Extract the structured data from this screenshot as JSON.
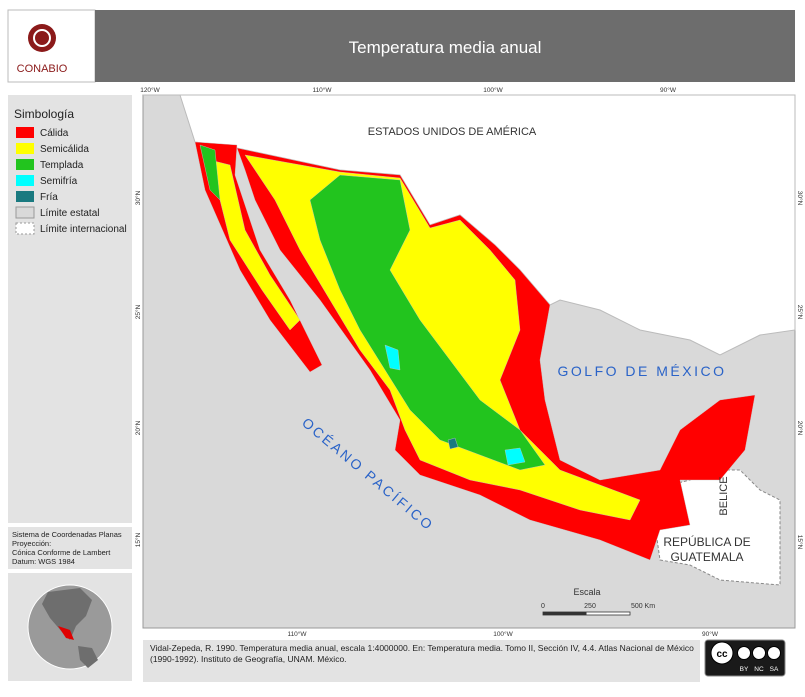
{
  "header": {
    "title": "Temperatura media anual",
    "logo_text": "CONABIO"
  },
  "legend": {
    "title": "Simbología",
    "items": [
      {
        "label": "Cálida",
        "color": "#ff0000"
      },
      {
        "label": "Semicálida",
        "color": "#ffff00"
      },
      {
        "label": "Templada",
        "color": "#22c41e"
      },
      {
        "label": "Semifría",
        "color": "#00ffff"
      },
      {
        "label": "Fría",
        "color": "#1a7a80"
      },
      {
        "label": "Límite estatal",
        "color": "#d9d9d9"
      },
      {
        "label": "Límite internacional",
        "color": "#ffffff"
      }
    ]
  },
  "projection": {
    "lines": [
      "Sistema de Coordenadas Planas",
      "Proyección:",
      "Cónica Conforme de Lambert",
      "Datum: WGS 1984"
    ]
  },
  "map": {
    "top_ticks": [
      "120°W",
      "110°W",
      "100°W",
      "90°W"
    ],
    "bottom_ticks": [
      "110°W",
      "100°W",
      "90°W"
    ],
    "left_ticks": [
      "30°N",
      "25°N",
      "20°N",
      "15°N"
    ],
    "right_ticks": [
      "30°N",
      "25°N",
      "20°N",
      "15°N"
    ],
    "labels": {
      "usa": "ESTADOS UNIDOS DE AMÉRICA",
      "gulf": "GOLFO DE MÉXICO",
      "pacific": "OCÉANO PACÍFICO",
      "belize": "BELICE",
      "guatemala": [
        "REPÚBLICA DE",
        "GUATEMALA"
      ]
    },
    "scale": {
      "title": "Escala",
      "ticks": [
        "0",
        "250",
        "500 Km"
      ]
    }
  },
  "citation": "Vidal-Zepeda, R. 1990. Temperatura media anual, escala 1:4000000. En: Temperatura media. Tomo II, Sección IV, 4.4. Atlas Nacional de México (1990-1992). Instituto de Geografía, UNAM. México.",
  "license": {
    "badge": "cc",
    "terms": [
      "BY",
      "NC",
      "SA"
    ]
  }
}
